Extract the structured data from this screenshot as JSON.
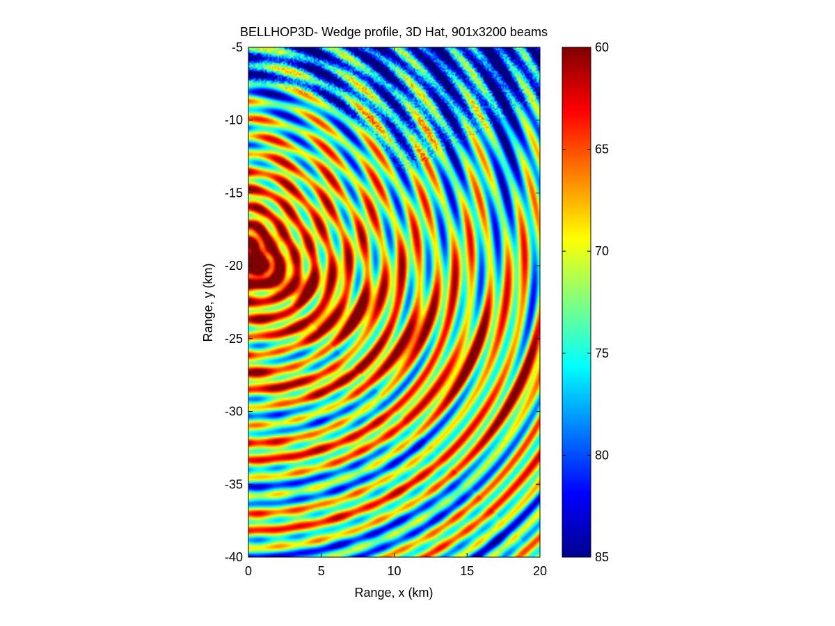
{
  "chart_data": {
    "type": "heatmap",
    "title": "BELLHOP3D- Wedge profile, 3D Hat, 901x3200 beams",
    "xlabel": "Range, x (km)",
    "ylabel": "Range, y (km)",
    "xlim": [
      0,
      20
    ],
    "ylim": [
      -40,
      -5
    ],
    "xticks": [
      0,
      5,
      10,
      15,
      20
    ],
    "yticks": [
      -5,
      -10,
      -15,
      -20,
      -25,
      -30,
      -35,
      -40
    ],
    "colormap": "jet",
    "colorbar": {
      "range": [
        60,
        85
      ],
      "reversed": true,
      "ticks": [
        60,
        65,
        70,
        75,
        80,
        85
      ]
    },
    "source_point": {
      "x": 0,
      "y": -19.5
    },
    "description": "Transmission loss field (dB). Concentric interference rings centered near the source at x=0, y=-19.5 km; loss 60-65 near source, rising to 80-85 in the upper-right shadow region; caustic bands of 62-68 curving from the source toward the lower right."
  }
}
